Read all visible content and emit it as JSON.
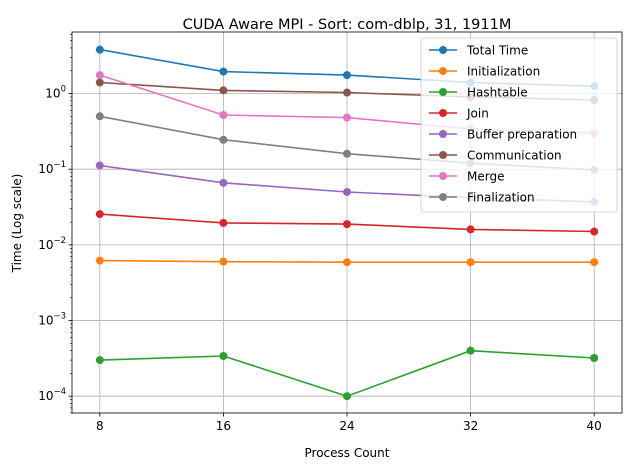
{
  "chart_data": {
    "type": "line",
    "title": "CUDA Aware MPI - Sort: com-dblp, 31, 1911M",
    "xlabel": "Process Count",
    "ylabel": "Time (Log scale)",
    "yscale": "log",
    "ylim": [
      6e-05,
      6.5
    ],
    "xlim": [
      6.2,
      41.8
    ],
    "grid": true,
    "legend_position": "top-right",
    "x": [
      8,
      16,
      24,
      32,
      40
    ],
    "x_tick_labels": [
      "8",
      "16",
      "24",
      "32",
      "40"
    ],
    "y_ticks": [
      0.0001,
      0.001,
      0.01,
      0.1,
      1
    ],
    "y_tick_labels": [
      {
        "base": "10",
        "exp": "−4"
      },
      {
        "base": "10",
        "exp": "−3"
      },
      {
        "base": "10",
        "exp": "−2"
      },
      {
        "base": "10",
        "exp": "−1"
      },
      {
        "base": "10",
        "exp": "0"
      }
    ],
    "series": [
      {
        "name": "Total Time",
        "color": "#1f77b4",
        "values": [
          3.8,
          1.95,
          1.75,
          1.4,
          1.25
        ]
      },
      {
        "name": "Initialization",
        "color": "#ff7f0e",
        "values": [
          0.0062,
          0.006,
          0.0059,
          0.0059,
          0.0059
        ]
      },
      {
        "name": "Hashtable",
        "color": "#2ca02c",
        "values": [
          0.0003,
          0.00034,
          0.0001,
          0.0004,
          0.00032
        ]
      },
      {
        "name": "Join",
        "color": "#d62728",
        "values": [
          0.0255,
          0.0195,
          0.0188,
          0.016,
          0.015
        ]
      },
      {
        "name": "Buffer preparation",
        "color": "#9467bd",
        "values": [
          0.112,
          0.066,
          0.05,
          0.042,
          0.037
        ]
      },
      {
        "name": "Communication",
        "color": "#8c564b",
        "values": [
          1.4,
          1.1,
          1.03,
          0.9,
          0.82
        ]
      },
      {
        "name": "Merge",
        "color": "#e377c2",
        "values": [
          1.75,
          0.52,
          0.48,
          0.34,
          0.3
        ]
      },
      {
        "name": "Finalization",
        "color": "#7f7f7f",
        "values": [
          0.5,
          0.245,
          0.16,
          0.12,
          0.098
        ]
      }
    ]
  }
}
